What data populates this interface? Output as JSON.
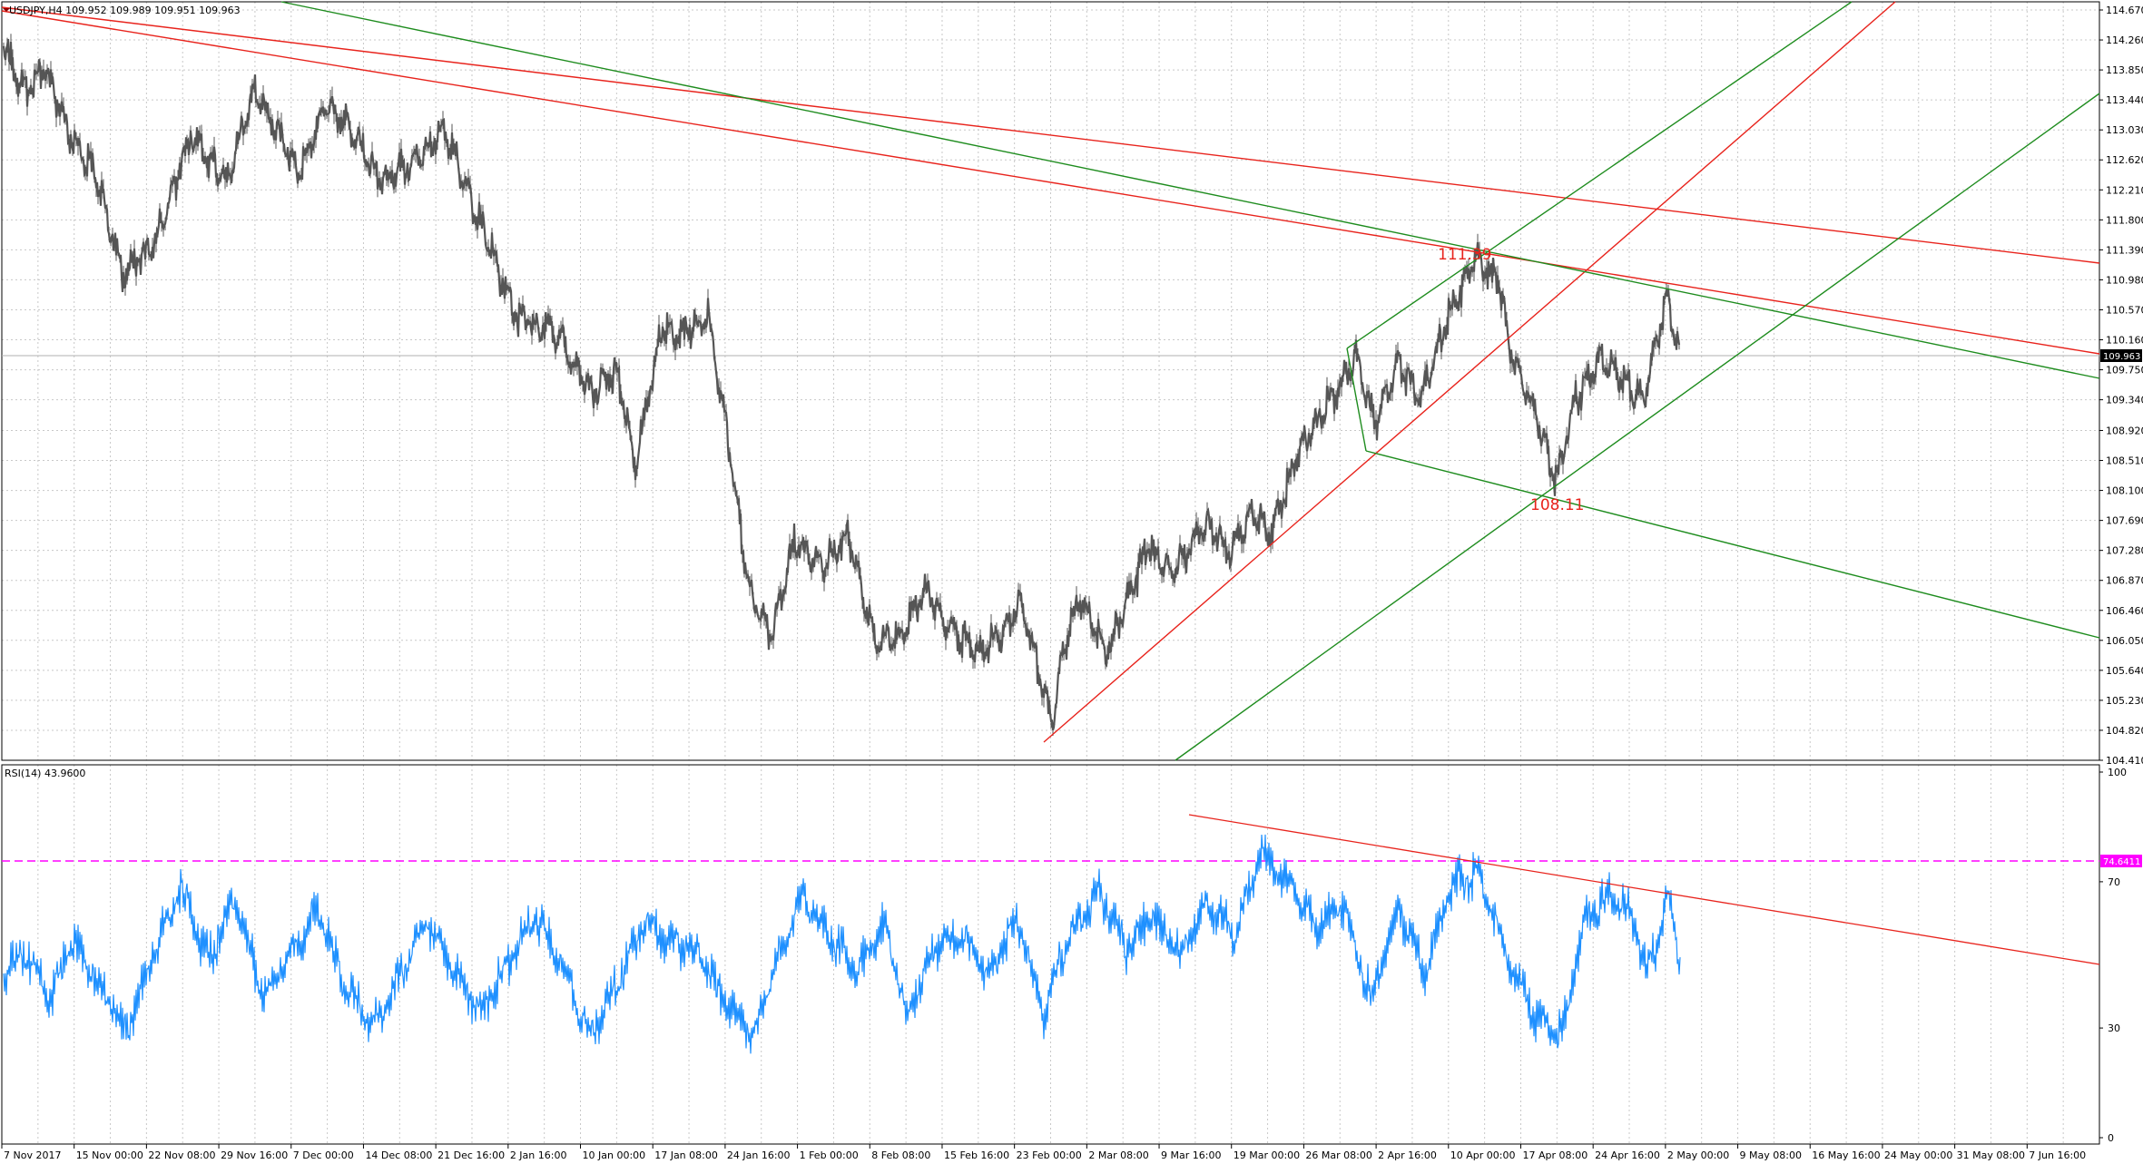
{
  "main_chart": {
    "symbol_header": "USDJPY,H4  109.952 109.989 109.951 109.963",
    "current_price_label": "109.963",
    "price_axis_labels": [
      "114.670",
      "114.260",
      "113.850",
      "113.440",
      "113.030",
      "112.620",
      "112.210",
      "111.800",
      "111.390",
      "110.980",
      "110.570",
      "110.160",
      "109.750",
      "109.340",
      "108.920",
      "108.510",
      "108.100",
      "107.690",
      "107.280",
      "106.870",
      "106.460",
      "106.050",
      "105.640",
      "105.230",
      "104.820",
      "104.410"
    ],
    "annotations": [
      {
        "text": "111.39",
        "role": "high"
      },
      {
        "text": "108.11",
        "role": "low"
      }
    ],
    "colors": {
      "price": "#555555",
      "red_line": "#e8231c",
      "green_line": "#1e8c1e",
      "grid": "#c8c8c8",
      "bg": "#ffffff"
    }
  },
  "rsi_chart": {
    "header": "RSI(14) 43.9600",
    "level_label": "74.6411",
    "axis_labels": [
      "100",
      "70",
      "30",
      "0"
    ],
    "colors": {
      "rsi": "#1e90ff",
      "level": "#ff00ff",
      "trend": "#e8231c"
    }
  },
  "time_axis_labels": [
    "7 Nov 2017",
    "15 Nov 00:00",
    "22 Nov 08:00",
    "29 Nov 16:00",
    "7 Dec 00:00",
    "14 Dec 08:00",
    "21 Dec 16:00",
    "2 Jan 16:00",
    "10 Jan 00:00",
    "17 Jan 08:00",
    "24 Jan 16:00",
    "1 Feb 00:00",
    "8 Feb 08:00",
    "15 Feb 16:00",
    "23 Feb 00:00",
    "2 Mar 08:00",
    "9 Mar 16:00",
    "19 Mar 00:00",
    "26 Mar 08:00",
    "2 Apr 16:00",
    "10 Apr 00:00",
    "17 Apr 08:00",
    "24 Apr 16:00",
    "2 May 00:00",
    "9 May 08:00",
    "16 May 16:00",
    "24 May 00:00",
    "31 May 08:00",
    "7 Jun 16:00"
  ]
}
